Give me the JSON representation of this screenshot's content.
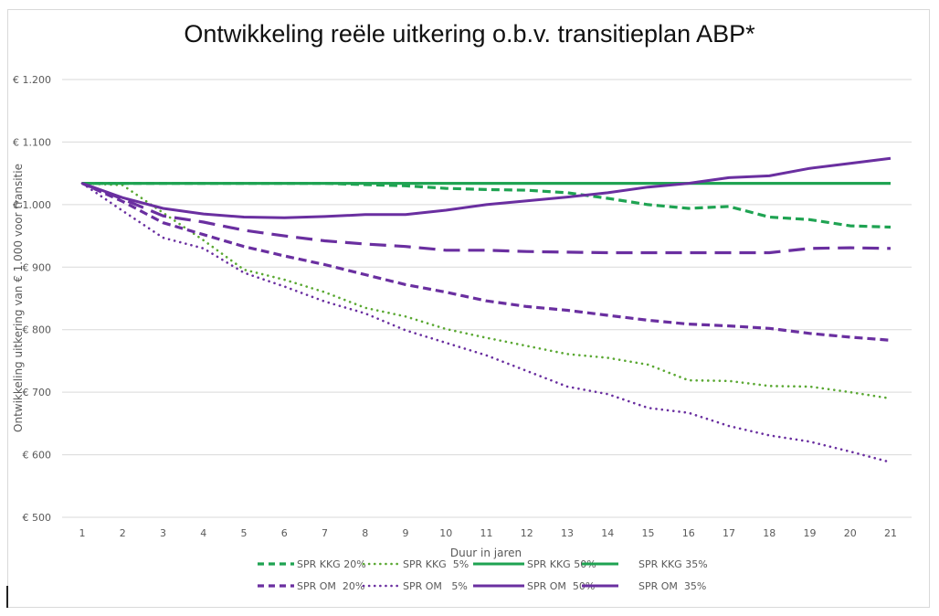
{
  "chart_data": {
    "type": "line",
    "title": "Ontwikkeling reële uitkering o.b.v. transitieplan ABP*",
    "xlabel": "Duur in jaren",
    "ylabel": "Ontwikkeling uitkering van € 1.000 voor transitie",
    "x": [
      1,
      2,
      3,
      4,
      5,
      6,
      7,
      8,
      9,
      10,
      11,
      12,
      13,
      14,
      15,
      16,
      17,
      18,
      19,
      20,
      21
    ],
    "x_tick_labels": [
      "1",
      "2",
      "3",
      "4",
      "5",
      "6",
      "7",
      "8",
      "9",
      "10",
      "11",
      "12",
      "13",
      "14",
      "15",
      "16",
      "17",
      "18",
      "19",
      "20",
      "21"
    ],
    "ylim": [
      500,
      1200
    ],
    "y_ticks": [
      500,
      600,
      700,
      800,
      900,
      1000,
      1100,
      1200
    ],
    "y_tick_labels": [
      "€ 500",
      "€ 600",
      "€ 700",
      "€ 800",
      "€ 900",
      "€ 1.000",
      "€ 1.100",
      "€ 1.200"
    ],
    "grid": "horizontal",
    "legend_position": "bottom",
    "series": [
      {
        "name": "SPR KKG 20%",
        "color": "#1fa352",
        "style": "dashed",
        "values": [
          1034,
          1034,
          1034,
          1034,
          1034,
          1034,
          1034,
          1032,
          1030,
          1026,
          1024,
          1023,
          1019,
          1010,
          1000,
          994,
          997,
          980,
          976,
          966,
          964
        ]
      },
      {
        "name": "SPR KKG  5%",
        "color": "#5aa832",
        "style": "dotted",
        "values": [
          1034,
          1031,
          987,
          943,
          896,
          880,
          860,
          835,
          821,
          801,
          787,
          774,
          761,
          755,
          744,
          719,
          718,
          710,
          709,
          700,
          690
        ]
      },
      {
        "name": "SPR KKG 50%",
        "color": "#1fa352",
        "style": "solid",
        "values": [
          1034,
          1034,
          1034,
          1034,
          1034,
          1034,
          1034,
          1034,
          1034,
          1034,
          1034,
          1034,
          1034,
          1034,
          1034,
          1034,
          1034,
          1034,
          1034,
          1034,
          1034
        ]
      },
      {
        "name": "SPR KKG 35%",
        "color": "#1fa352",
        "style": "solid",
        "values": [
          1034,
          1034,
          1034,
          1034,
          1034,
          1034,
          1034,
          1034,
          1034,
          1034,
          1034,
          1034,
          1034,
          1034,
          1034,
          1034,
          1034,
          1034,
          1034,
          1034,
          1034
        ]
      },
      {
        "name": "SPR OM  20%",
        "color": "#6a2fa0",
        "style": "dashed",
        "values": [
          1034,
          1005,
          971,
          952,
          933,
          918,
          904,
          888,
          872,
          860,
          846,
          837,
          831,
          823,
          815,
          809,
          806,
          802,
          794,
          788,
          783
        ]
      },
      {
        "name": "SPR OM   5%",
        "color": "#6a2fa0",
        "style": "dotted",
        "values": [
          1034,
          990,
          947,
          930,
          891,
          869,
          845,
          826,
          799,
          779,
          759,
          734,
          709,
          697,
          675,
          667,
          646,
          631,
          621,
          605,
          588
        ]
      },
      {
        "name": "SPR OM  50%",
        "color": "#6a2fa0",
        "style": "solid",
        "values": [
          1034,
          1011,
          994,
          985,
          980,
          979,
          981,
          984,
          984,
          991,
          1000,
          1006,
          1012,
          1019,
          1028,
          1034,
          1043,
          1046,
          1058,
          1066,
          1074
        ]
      },
      {
        "name": "SPR OM  35%",
        "color": "#6a2fa0",
        "style": "longdash",
        "values": [
          1034,
          1009,
          982,
          972,
          959,
          950,
          942,
          937,
          933,
          927,
          927,
          925,
          924,
          923,
          923,
          923,
          923,
          923,
          930,
          931,
          930
        ]
      }
    ]
  }
}
